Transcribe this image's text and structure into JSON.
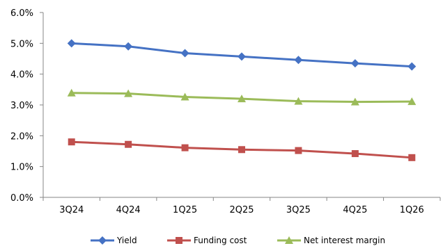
{
  "chart_data": {
    "type": "line",
    "categories": [
      "3Q24",
      "4Q24",
      "1Q25",
      "2Q25",
      "3Q25",
      "4Q25",
      "1Q26"
    ],
    "series": [
      {
        "name": "Yield",
        "values": [
          5.0,
          4.9,
          4.68,
          4.57,
          4.46,
          4.35,
          4.25
        ],
        "color": "#4572C4",
        "marker": "diamond"
      },
      {
        "name": "Funding cost",
        "values": [
          1.8,
          1.72,
          1.61,
          1.55,
          1.52,
          1.42,
          1.29
        ],
        "color": "#C0504D",
        "marker": "square"
      },
      {
        "name": "Net interest margin",
        "values": [
          3.39,
          3.37,
          3.26,
          3.2,
          3.12,
          3.1,
          3.11
        ],
        "color": "#9BBB59",
        "marker": "triangle"
      }
    ],
    "y_ticks": [
      "0.0%",
      "1.0%",
      "2.0%",
      "3.0%",
      "4.0%",
      "5.0%",
      "6.0%"
    ],
    "ylim": [
      0,
      6
    ],
    "grid": false,
    "legend": "bottom",
    "title": "",
    "xlabel": "",
    "ylabel": ""
  }
}
